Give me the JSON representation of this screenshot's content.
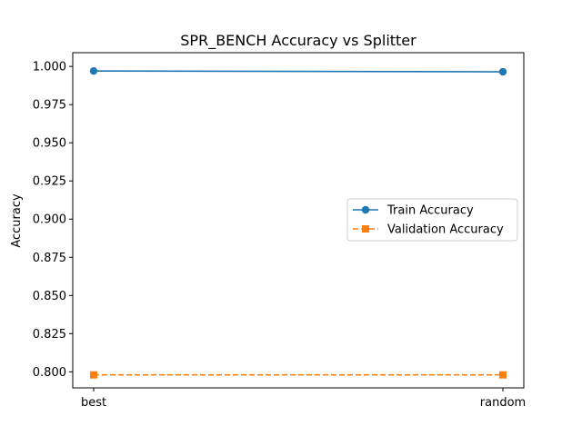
{
  "chart_data": {
    "type": "line",
    "title": "SPR_BENCH Accuracy vs Splitter",
    "xlabel": "",
    "ylabel": "Accuracy",
    "categories": [
      "best",
      "random"
    ],
    "ylim": [
      0.7895,
      1.009
    ],
    "yticks": [
      0.8,
      0.825,
      0.85,
      0.875,
      0.9,
      0.925,
      0.95,
      0.975,
      1.0
    ],
    "ytick_labels": [
      "0.800",
      "0.825",
      "0.850",
      "0.875",
      "0.900",
      "0.925",
      "0.950",
      "0.975",
      "1.000"
    ],
    "grid": false,
    "legend_position": "center-right",
    "series": [
      {
        "name": "Train Accuracy",
        "values": [
          0.997,
          0.9965
        ],
        "color": "#1f77b4",
        "marker": "circle",
        "linestyle": "solid"
      },
      {
        "name": "Validation Accuracy",
        "values": [
          0.798,
          0.798
        ],
        "color": "#ff7f0e",
        "marker": "square",
        "linestyle": "dashed"
      }
    ]
  }
}
